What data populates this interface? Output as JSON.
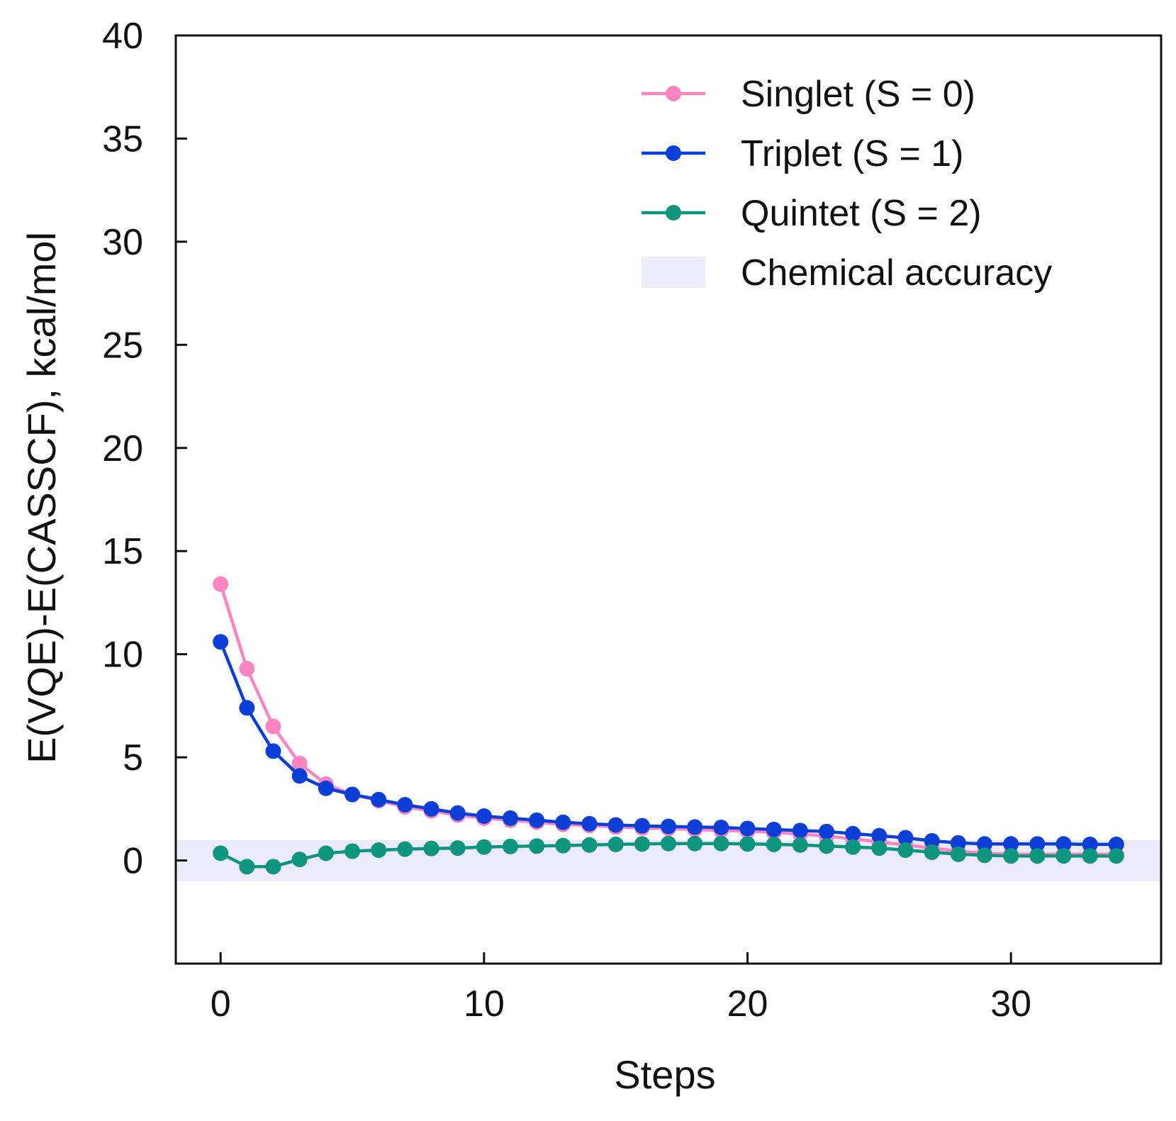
{
  "chart_data": {
    "type": "line",
    "title": "",
    "xlabel": "Steps",
    "ylabel": "E(VQE)-E(CASSCF), kcal/mol",
    "xlim": [
      -1.7,
      35.7
    ],
    "ylim": [
      -5,
      40
    ],
    "xticks": [
      0,
      10,
      20,
      30
    ],
    "yticks": [
      0,
      5,
      10,
      15,
      20,
      25,
      30,
      35,
      40
    ],
    "x": [
      0,
      1,
      2,
      3,
      4,
      5,
      6,
      7,
      8,
      9,
      10,
      11,
      12,
      13,
      14,
      15,
      16,
      17,
      18,
      19,
      20,
      21,
      22,
      23,
      24,
      25,
      26,
      27,
      28,
      29,
      30,
      31,
      32,
      33,
      34
    ],
    "band": {
      "label": "Chemical accuracy",
      "range": [
        -1,
        1
      ],
      "color": "#ebebfb"
    },
    "legend_position": "top-right",
    "series": [
      {
        "name": "Singlet  (S = 0)",
        "color": "#ff85c0",
        "values": [
          13.4,
          9.3,
          6.5,
          4.7,
          3.7,
          3.2,
          2.9,
          2.6,
          2.4,
          2.2,
          2.05,
          1.95,
          1.85,
          1.75,
          1.7,
          1.62,
          1.58,
          1.55,
          1.5,
          1.46,
          1.42,
          1.36,
          1.28,
          1.18,
          1.05,
          0.9,
          0.75,
          0.6,
          0.45,
          0.35,
          0.3,
          0.3,
          0.3,
          0.3,
          0.3
        ]
      },
      {
        "name": "Triplet   (S = 1)",
        "color": "#0b3fd8",
        "values": [
          10.6,
          7.4,
          5.3,
          4.1,
          3.5,
          3.2,
          2.95,
          2.7,
          2.5,
          2.3,
          2.15,
          2.05,
          1.95,
          1.85,
          1.78,
          1.72,
          1.68,
          1.65,
          1.62,
          1.6,
          1.55,
          1.5,
          1.45,
          1.4,
          1.3,
          1.2,
          1.1,
          0.95,
          0.85,
          0.8,
          0.8,
          0.8,
          0.8,
          0.78,
          0.78
        ]
      },
      {
        "name": "Quintet (S = 2)",
        "color": "#0e9580",
        "values": [
          0.35,
          -0.3,
          -0.3,
          0.05,
          0.35,
          0.45,
          0.5,
          0.55,
          0.58,
          0.6,
          0.65,
          0.68,
          0.7,
          0.72,
          0.75,
          0.78,
          0.8,
          0.82,
          0.82,
          0.82,
          0.8,
          0.78,
          0.75,
          0.7,
          0.65,
          0.6,
          0.5,
          0.4,
          0.3,
          0.25,
          0.22,
          0.22,
          0.22,
          0.22,
          0.22
        ]
      }
    ]
  }
}
